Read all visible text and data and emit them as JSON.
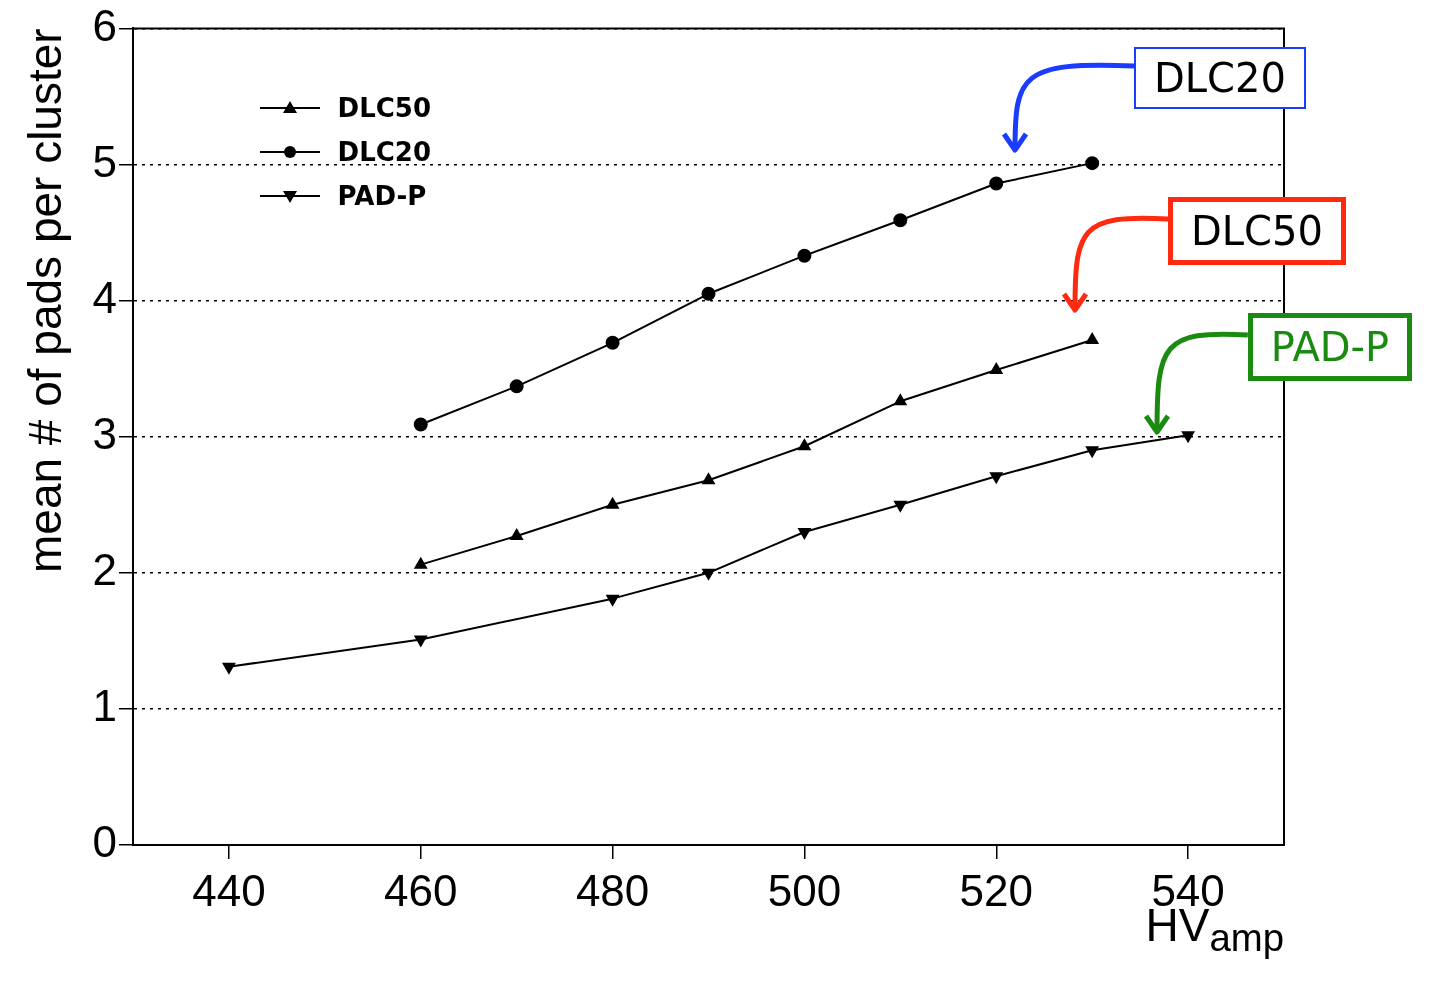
{
  "chart_data": {
    "type": "line",
    "xlabel": "HV$_{amp}$",
    "ylabel": "mean # of pads per cluster",
    "xlim": [
      430,
      550
    ],
    "xticks": [
      440,
      460,
      480,
      500,
      520,
      540
    ],
    "ylim": [
      0,
      6
    ],
    "yticks": [
      0,
      1,
      2,
      3,
      4,
      5,
      6
    ],
    "grid": "y",
    "legend": "top left",
    "line_style": "solid",
    "series": [
      {
        "name": "DLC50",
        "color": "#000000",
        "marker": "triangle",
        "x": [
          460,
          470,
          480,
          490,
          500,
          510,
          520,
          530
        ],
        "values": [
          2.06,
          2.27,
          2.5,
          2.68,
          2.93,
          3.26,
          3.49,
          3.71
        ]
      },
      {
        "name": "DLC20",
        "color": "#000000",
        "marker": "circle",
        "x": [
          460,
          470,
          480,
          490,
          500,
          510,
          520,
          530
        ],
        "values": [
          3.09,
          3.37,
          3.69,
          4.05,
          4.33,
          4.59,
          4.86,
          5.01
        ]
      },
      {
        "name": "PAD-P",
        "color": "#000000",
        "marker": "triangle-down",
        "x": [
          440,
          460,
          480,
          490,
          500,
          510,
          520,
          530,
          540
        ],
        "values": [
          1.31,
          1.51,
          1.81,
          2.0,
          2.3,
          2.5,
          2.71,
          2.9,
          3.01
        ]
      }
    ],
    "annotations": [
      "DLC20",
      "DLC50",
      "PAD-P"
    ]
  }
}
